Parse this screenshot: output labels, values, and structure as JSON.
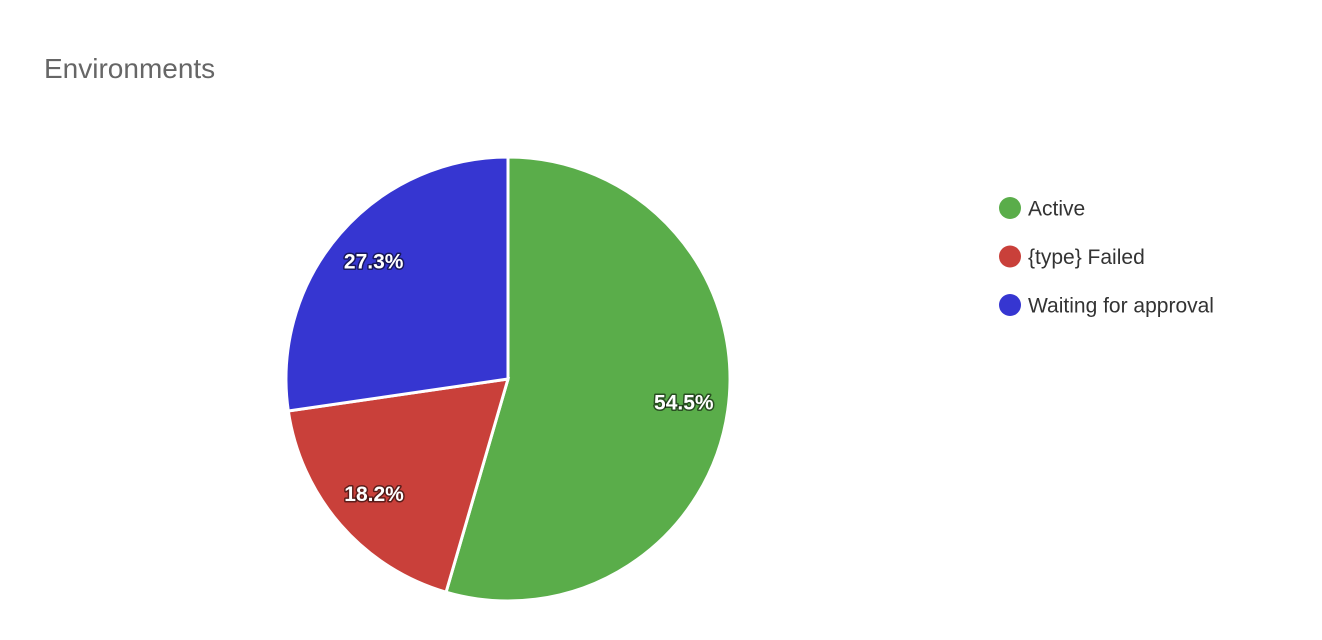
{
  "chart_data": {
    "type": "pie",
    "title": "Environments",
    "categories": [
      "Active",
      "{type} Failed",
      "Waiting for approval"
    ],
    "values": [
      54.5,
      18.2,
      27.3
    ],
    "value_labels": [
      "54.5%",
      "18.2%",
      "27.3%"
    ],
    "colors": [
      "#5aad4a",
      "#c9403a",
      "#3636d1"
    ],
    "legend": "right"
  }
}
